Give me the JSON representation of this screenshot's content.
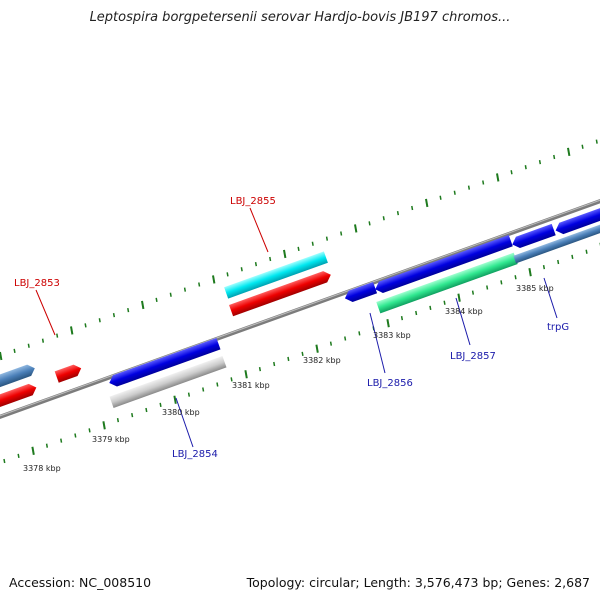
{
  "title": "Leptospira borgpetersenii serovar Hardjo-bovis JB197 chromos...",
  "footer": {
    "accession": "Accession: NC_008510",
    "summary": "Topology: circular; Length: 3,576,473 bp; Genes: 2,687"
  },
  "colors": {
    "backbone": "#808080",
    "tick": "#1e7a1e",
    "label_red": "#cc0000",
    "label_blue": "#1a1aaa"
  },
  "ticks": [
    {
      "label": "3378 kbp"
    },
    {
      "label": "3379 kbp"
    },
    {
      "label": "3380 kbp"
    },
    {
      "label": "3381 kbp"
    },
    {
      "label": "3382 kbp"
    },
    {
      "label": "3383 kbp"
    },
    {
      "label": "3384 kbp"
    },
    {
      "label": "3385 kbp"
    }
  ],
  "gene_labels": [
    {
      "text": "LBJ_2853",
      "color": "red"
    },
    {
      "text": "LBJ_2855",
      "color": "red"
    },
    {
      "text": "LBJ_2854",
      "color": "blue"
    },
    {
      "text": "LBJ_2856",
      "color": "blue"
    },
    {
      "text": "LBJ_2857",
      "color": "blue"
    },
    {
      "text": "trpG",
      "color": "blue"
    }
  ]
}
